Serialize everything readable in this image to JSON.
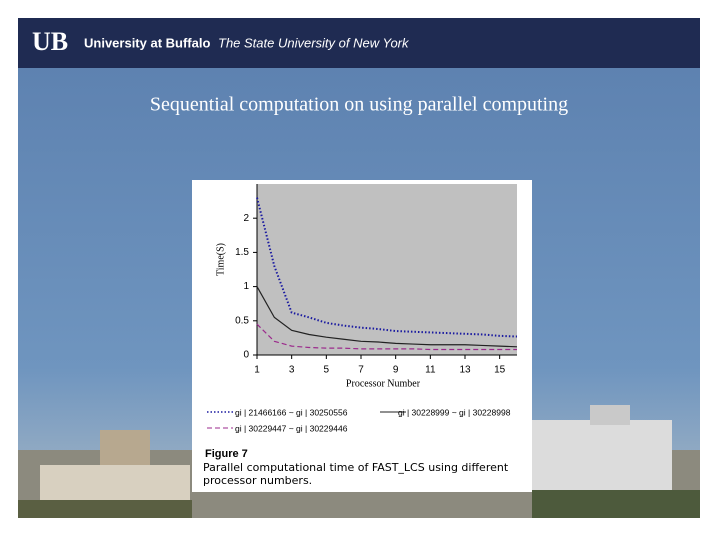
{
  "header": {
    "logo": "UB",
    "university": "University at Buffalo",
    "subtitle": "The State University of New York"
  },
  "slide_title": "Sequential computation on using parallel computing",
  "caption": {
    "label": "Figure 7",
    "text": "Parallel computational time of FAST_LCS using different processor numbers."
  },
  "chart_data": {
    "type": "line",
    "x_label": "Processor Number",
    "y_label": "Time(S)",
    "x": [
      1,
      2,
      3,
      4,
      5,
      6,
      7,
      8,
      9,
      10,
      11,
      12,
      13,
      14,
      15,
      16
    ],
    "xlim": [
      1,
      16
    ],
    "xticks": [
      1,
      3,
      5,
      7,
      9,
      11,
      13,
      15
    ],
    "ylim": [
      0,
      2.5
    ],
    "yticks": [
      0,
      0.5,
      1,
      1.5,
      2
    ],
    "series": [
      {
        "name": "gi | 21466166 ~ gi | 30250556",
        "color": "#1a1aa0",
        "dash": "dotted",
        "values": [
          2.3,
          1.3,
          0.62,
          0.55,
          0.47,
          0.43,
          0.4,
          0.38,
          0.35,
          0.34,
          0.33,
          0.32,
          0.31,
          0.3,
          0.28,
          0.27
        ]
      },
      {
        "name": "gi | 30228999 ~ gi | 30228998",
        "color": "#222222",
        "dash": "solid",
        "values": [
          1.0,
          0.55,
          0.36,
          0.3,
          0.26,
          0.23,
          0.2,
          0.19,
          0.17,
          0.16,
          0.15,
          0.15,
          0.15,
          0.14,
          0.13,
          0.12
        ]
      },
      {
        "name": "gi | 30229447 ~ gi | 30229446",
        "color": "#9b2a8c",
        "dash": "dashed",
        "values": [
          0.45,
          0.2,
          0.13,
          0.11,
          0.1,
          0.1,
          0.09,
          0.09,
          0.09,
          0.09,
          0.08,
          0.08,
          0.08,
          0.08,
          0.08,
          0.08
        ]
      }
    ],
    "plot_background": "#c0c0c0"
  }
}
